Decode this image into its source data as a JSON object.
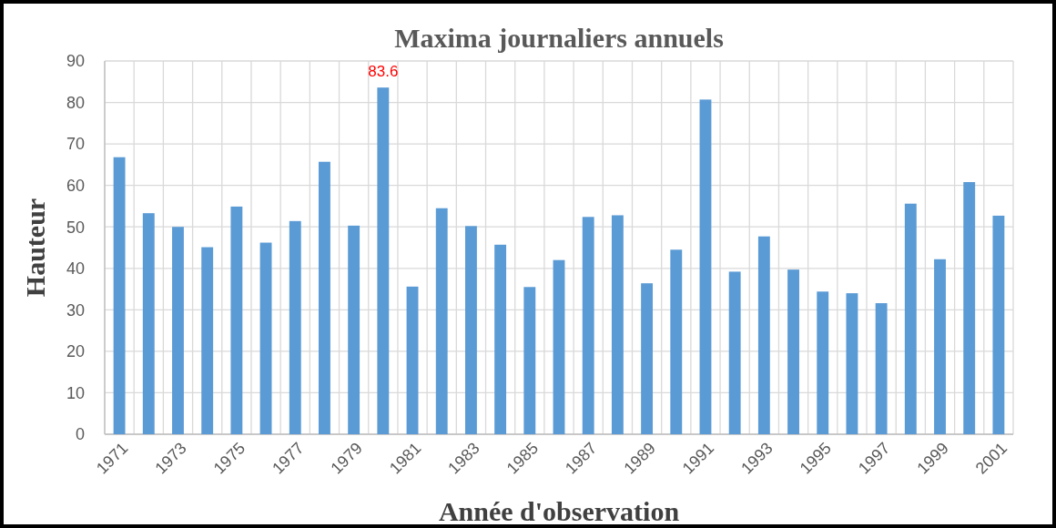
{
  "chart_data": {
    "type": "bar",
    "title": "Maxima journaliers annuels",
    "xlabel": "Année d'observation",
    "ylabel": "Hauteur",
    "categories": [
      "1971",
      null,
      "1973",
      null,
      "1975",
      null,
      "1977",
      null,
      "1979",
      null,
      "1981",
      null,
      "1983",
      null,
      "1985",
      null,
      "1987",
      null,
      "1989",
      null,
      "1991",
      null,
      "1993",
      null,
      "1995",
      null,
      "1997",
      null,
      "1999",
      null,
      "2001"
    ],
    "values": [
      66.8,
      53.3,
      50.0,
      45.1,
      54.9,
      46.2,
      51.4,
      65.7,
      50.3,
      83.6,
      35.6,
      54.5,
      50.2,
      45.7,
      35.5,
      42.0,
      52.4,
      52.8,
      36.4,
      44.5,
      80.7,
      39.2,
      47.7,
      39.7,
      34.4,
      34.0,
      31.6,
      55.6,
      42.2,
      60.8,
      52.7
    ],
    "value_labels": [
      null,
      null,
      null,
      null,
      null,
      null,
      null,
      null,
      null,
      "83.6",
      null,
      null,
      null,
      null,
      null,
      null,
      null,
      null,
      null,
      null,
      null,
      null,
      null,
      null,
      null,
      null,
      null,
      null,
      null,
      null,
      null
    ],
    "color": "#5b9bd5",
    "ylim": [
      0,
      90
    ],
    "yticks": [
      0,
      10,
      20,
      30,
      40,
      50,
      60,
      70,
      80,
      90
    ],
    "grid": true
  }
}
